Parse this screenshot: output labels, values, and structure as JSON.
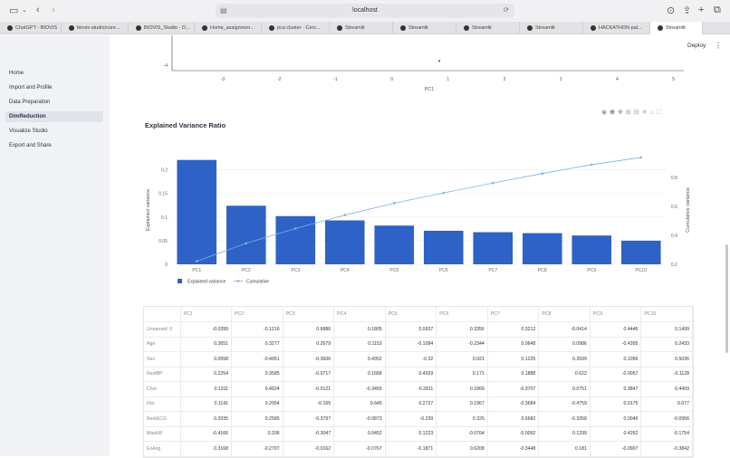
{
  "browser": {
    "url": "localhost",
    "tabs": [
      {
        "label": "ChatGPT - BIOVIS",
        "active": false
      },
      {
        "label": "biovis-studio/core...",
        "active": false
      },
      {
        "label": "BIOVIS_Studio - D...",
        "active": false
      },
      {
        "label": "Home_assignmen...",
        "active": false
      },
      {
        "label": "pca cluster - Cerc...",
        "active": false
      },
      {
        "label": "Streamlit",
        "active": false
      },
      {
        "label": "Streamlit",
        "active": false
      },
      {
        "label": "Streamlit",
        "active": false
      },
      {
        "label": "Streamlit",
        "active": false
      },
      {
        "label": "HACKATHON pal...",
        "active": false
      },
      {
        "label": "Streamlit",
        "active": true
      }
    ]
  },
  "sidebar": {
    "items": [
      {
        "label": "Home",
        "active": false
      },
      {
        "label": "Import and Profile",
        "active": false
      },
      {
        "label": "Data Preparation",
        "active": false
      },
      {
        "label": "DimReduction",
        "active": true
      },
      {
        "label": "Visualize Studio",
        "active": false
      },
      {
        "label": "Export and Share",
        "active": false
      }
    ]
  },
  "header": {
    "deploy_label": "Deploy"
  },
  "top_chart": {
    "y_tick": "-4",
    "x_ticks": [
      "-3",
      "-2",
      "-1",
      "0",
      "1",
      "2",
      "3",
      "4",
      "5"
    ],
    "xlabel": "PC1"
  },
  "section": {
    "title": "Explained Variance Ratio"
  },
  "chart_data": {
    "type": "bar",
    "categories": [
      "PC1",
      "PC2",
      "PC3",
      "PC4",
      "PC5",
      "PC6",
      "PC7",
      "PC8",
      "PC9",
      "PC10"
    ],
    "series": [
      {
        "name": "Explained variance",
        "type": "bar",
        "values": [
          0.221,
          0.124,
          0.102,
          0.093,
          0.082,
          0.071,
          0.068,
          0.066,
          0.061,
          0.05
        ],
        "color": "#2e62c6"
      },
      {
        "name": "Cumulative",
        "type": "line",
        "axis": "right",
        "values": [
          0.221,
          0.345,
          0.447,
          0.54,
          0.622,
          0.693,
          0.761,
          0.827,
          0.888,
          0.938
        ],
        "color": "#7fb2e5"
      }
    ],
    "xlabel": "",
    "ylabel": "Explained variance",
    "y2label": "Cumulative variance",
    "ylim": [
      0,
      0.23
    ],
    "y2lim": [
      0.2,
      0.95
    ],
    "yticks": [
      "0",
      "0.05",
      "0.1",
      "0.15",
      "0.2"
    ],
    "y2ticks": [
      "0.2",
      "0.4",
      "0.6",
      "0.8"
    ],
    "legend_position": "bottom-left",
    "grid": true
  },
  "table": {
    "columns": [
      "",
      "PC1",
      "PC2",
      "PC3",
      "PC4",
      "PC5",
      "PC6",
      "PC7",
      "PC8",
      "PC9",
      "PC10"
    ],
    "rows": [
      [
        "Unnamed: 0",
        "-0.0399",
        "-0.1216",
        "0.6886",
        "0.1805",
        "0.0937",
        "0.3356",
        "0.3212",
        "-0.0414",
        "0.4446",
        "0.1499"
      ],
      [
        "Age",
        "0.3651",
        "0.3277",
        "0.2679",
        "0.1153",
        "-0.1084",
        "-0.2344",
        "0.0648",
        "0.0986",
        "-0.4395",
        "0.2433"
      ],
      [
        "Sex",
        "0.0558",
        "-0.4051",
        "-0.3606",
        "0.4352",
        "-0.32",
        "0.021",
        "0.1225",
        "0.3599",
        "0.1056",
        "0.5036"
      ],
      [
        "RestBP",
        "0.2254",
        "0.3585",
        "-0.0717",
        "0.1668",
        "0.4929",
        "0.171",
        "0.1888",
        "0.622",
        "-0.0057",
        "-0.1128"
      ],
      [
        "Chol",
        "0.1311",
        "0.4924",
        "-0.0121",
        "-0.3455",
        "-0.2811",
        "0.1869",
        "-0.3707",
        "0.0751",
        "0.3847",
        "0.4459"
      ],
      [
        "Fbs",
        "0.1141",
        "0.2054",
        "-0.165",
        "0.645",
        "0.2727",
        "0.1967",
        "-0.3684",
        "-0.4759",
        "0.0175",
        "0.077"
      ],
      [
        "RestECG",
        "0.2035",
        "0.2585",
        "-0.3797",
        "-0.0873",
        "-0.239",
        "0.325",
        "0.6682",
        "-0.3358",
        "0.0046",
        "-0.0956"
      ],
      [
        "MaxHR",
        "-0.4166",
        "0.206",
        "-0.3047",
        "0.0452",
        "0.1223",
        "-0.0764",
        "-0.0092",
        "0.1299",
        "0.4262",
        "-0.1754"
      ],
      [
        "ExAng",
        "0.3168",
        "-0.2707",
        "-0.0162",
        "-0.0767",
        "-0.1871",
        "0.6208",
        "-0.3448",
        "0.181",
        "-0.0907",
        "-0.3842"
      ]
    ]
  }
}
